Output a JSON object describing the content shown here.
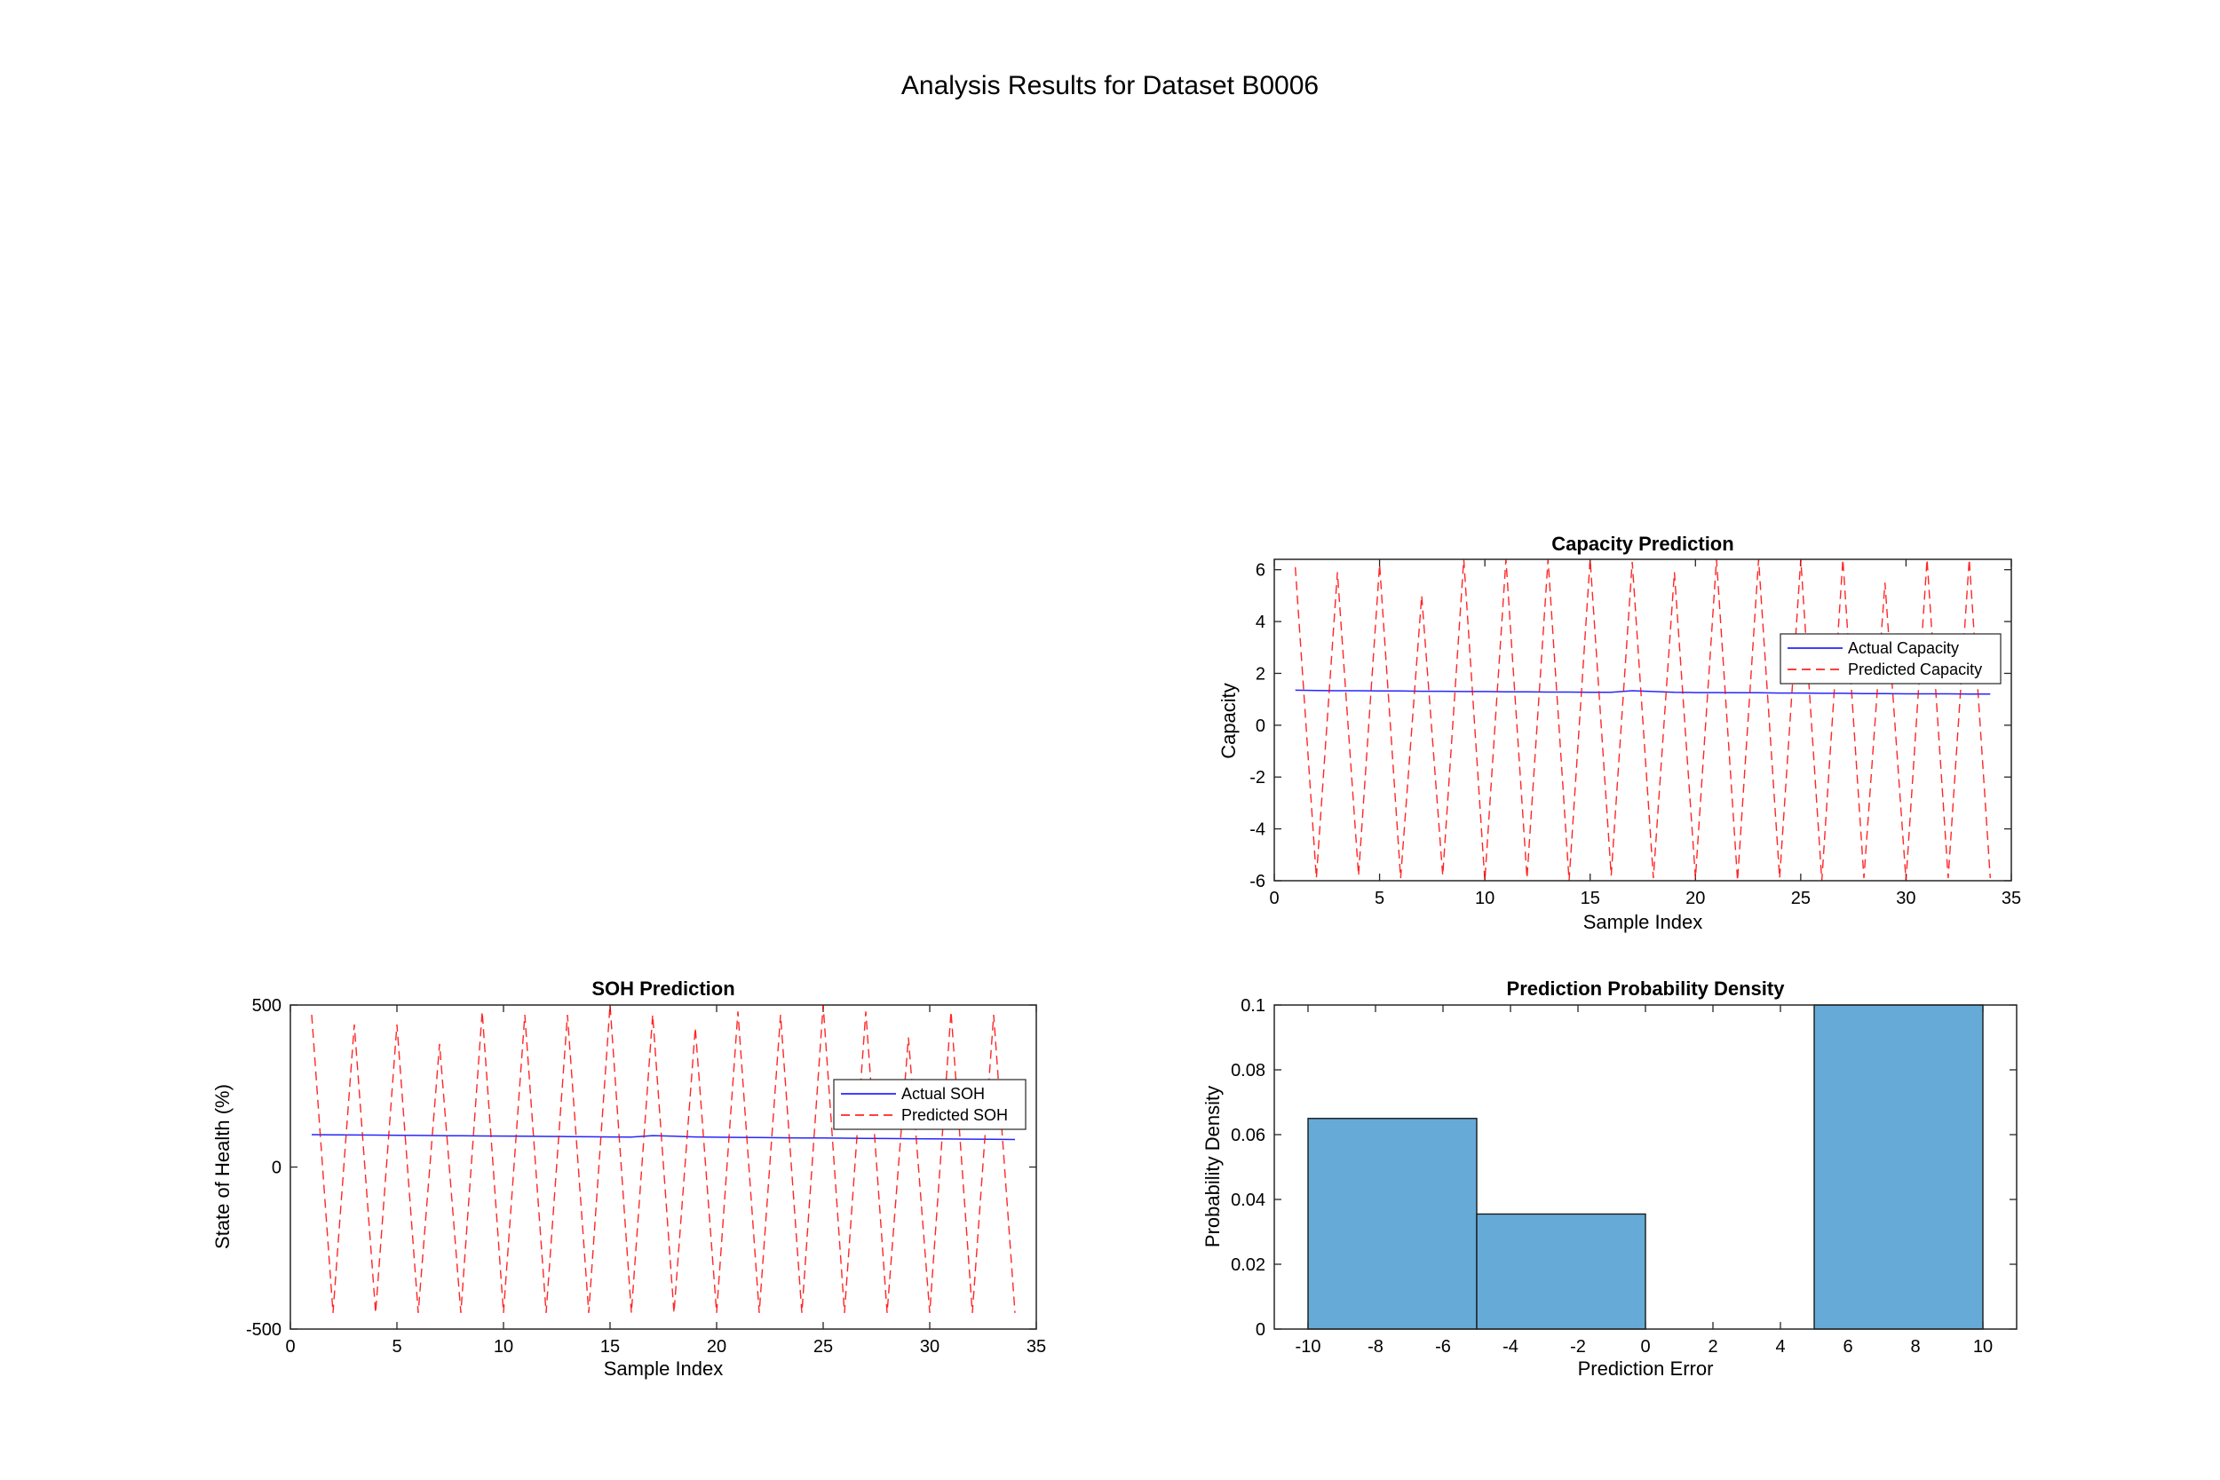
{
  "figure_title": "Analysis Results for Dataset B0006",
  "chart_data": [
    {
      "id": "capacity",
      "type": "line",
      "title": "Capacity Prediction",
      "xlabel": "Sample Index",
      "ylabel": "Capacity",
      "xlim": [
        0,
        35
      ],
      "ylim": [
        -6,
        6.4
      ],
      "xticks": [
        0,
        5,
        10,
        15,
        20,
        25,
        30,
        35
      ],
      "yticks": [
        -6,
        -4,
        -2,
        0,
        2,
        4,
        6
      ],
      "grid": false,
      "legend": "right",
      "series": [
        {
          "name": "Actual Capacity",
          "color": "#0000ff",
          "style": "solid",
          "x": [
            1,
            2,
            3,
            4,
            5,
            6,
            7,
            8,
            9,
            10,
            11,
            12,
            13,
            14,
            15,
            16,
            17,
            18,
            19,
            20,
            21,
            22,
            23,
            24,
            25,
            26,
            27,
            28,
            29,
            30,
            31,
            32,
            33,
            34
          ],
          "y": [
            1.35,
            1.34,
            1.33,
            1.33,
            1.32,
            1.32,
            1.31,
            1.31,
            1.3,
            1.3,
            1.29,
            1.29,
            1.28,
            1.28,
            1.27,
            1.27,
            1.33,
            1.3,
            1.27,
            1.26,
            1.26,
            1.25,
            1.25,
            1.24,
            1.24,
            1.23,
            1.23,
            1.22,
            1.22,
            1.21,
            1.21,
            1.21,
            1.2,
            1.2
          ]
        },
        {
          "name": "Predicted Capacity",
          "color": "#ff0000",
          "style": "dashed",
          "x": [
            1,
            2,
            3,
            4,
            5,
            6,
            7,
            8,
            9,
            10,
            11,
            12,
            13,
            14,
            15,
            16,
            17,
            18,
            19,
            20,
            21,
            22,
            23,
            24,
            25,
            26,
            27,
            28,
            29,
            30,
            31,
            32,
            33,
            34
          ],
          "y": [
            6.1,
            -5.9,
            5.9,
            -5.8,
            6.2,
            -5.9,
            5.0,
            -5.8,
            6.4,
            -6.0,
            6.4,
            -5.9,
            6.4,
            -6.0,
            6.4,
            -5.8,
            6.3,
            -5.9,
            5.9,
            -5.9,
            6.4,
            -6.0,
            6.4,
            -5.9,
            6.4,
            -6.0,
            6.4,
            -5.9,
            5.5,
            -6.0,
            6.4,
            -5.9,
            6.4,
            -5.9
          ]
        }
      ]
    },
    {
      "id": "soh",
      "type": "line",
      "title": "SOH Prediction",
      "xlabel": "Sample Index",
      "ylabel": "State of Health (%)",
      "xlim": [
        0,
        35
      ],
      "ylim": [
        -500,
        500
      ],
      "xticks": [
        0,
        5,
        10,
        15,
        20,
        25,
        30,
        35
      ],
      "yticks": [
        -500,
        0,
        500
      ],
      "grid": false,
      "legend": "right",
      "series": [
        {
          "name": "Actual SOH",
          "color": "#0000ff",
          "style": "solid",
          "x": [
            1,
            2,
            3,
            4,
            5,
            6,
            7,
            8,
            9,
            10,
            11,
            12,
            13,
            14,
            15,
            16,
            17,
            18,
            19,
            20,
            21,
            22,
            23,
            24,
            25,
            26,
            27,
            28,
            29,
            30,
            31,
            32,
            33,
            34
          ],
          "y": [
            100,
            99.5,
            99,
            98.5,
            98,
            97.5,
            97,
            96.5,
            96,
            95.5,
            95,
            94.5,
            94,
            93.5,
            93,
            92.5,
            97,
            95,
            93,
            92,
            91.5,
            91,
            90.5,
            90,
            89.5,
            89,
            88.5,
            88,
            87.5,
            87,
            86.5,
            86,
            85.5,
            85
          ]
        },
        {
          "name": "Predicted SOH",
          "color": "#ff0000",
          "style": "dashed",
          "x": [
            1,
            2,
            3,
            4,
            5,
            6,
            7,
            8,
            9,
            10,
            11,
            12,
            13,
            14,
            15,
            16,
            17,
            18,
            19,
            20,
            21,
            22,
            23,
            24,
            25,
            26,
            27,
            28,
            29,
            30,
            31,
            32,
            33,
            34
          ],
          "y": [
            470,
            -450,
            440,
            -450,
            440,
            -450,
            380,
            -450,
            480,
            -450,
            470,
            -450,
            470,
            -450,
            500,
            -450,
            470,
            -450,
            430,
            -450,
            480,
            -450,
            470,
            -450,
            500,
            -450,
            480,
            -450,
            400,
            -450,
            480,
            -450,
            470,
            -450
          ]
        }
      ]
    },
    {
      "id": "density",
      "type": "bar",
      "title": "Prediction Probability Density",
      "xlabel": "Prediction Error",
      "ylabel": "Probability Density",
      "xlim": [
        -11,
        11
      ],
      "ylim": [
        0,
        0.1
      ],
      "xticks": [
        -10,
        -8,
        -6,
        -4,
        -2,
        0,
        2,
        4,
        6,
        8,
        10
      ],
      "yticks": [
        0,
        0.02,
        0.04,
        0.06,
        0.08,
        0.1
      ],
      "grid": false,
      "bar_color": "#66aad7",
      "bins": [
        {
          "from": -10,
          "to": -5,
          "value": 0.065
        },
        {
          "from": -5,
          "to": 0,
          "value": 0.0355
        },
        {
          "from": 0,
          "to": 5,
          "value": 0
        },
        {
          "from": 5,
          "to": 10,
          "value": 0.1
        }
      ]
    }
  ]
}
